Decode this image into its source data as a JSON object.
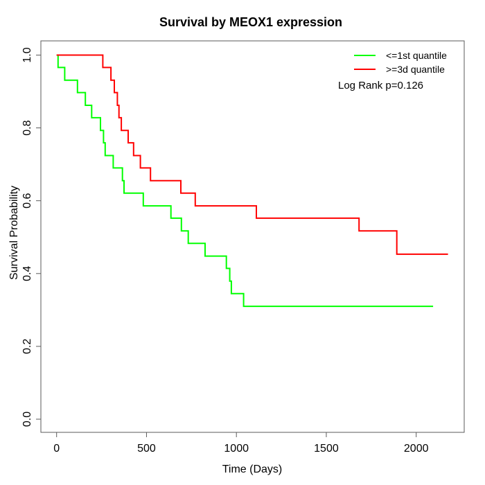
{
  "title": "Survival by MEOX1 expression",
  "axes": {
    "x_label": "Time (Days)",
    "y_label": "Survival Probability",
    "x_tick_labels": [
      "0",
      "500",
      "1000",
      "1500",
      "2000"
    ],
    "y_tick_labels": [
      "0.0",
      "0.2",
      "0.4",
      "0.6",
      "0.8",
      "1.0"
    ]
  },
  "legend": {
    "items": [
      {
        "label": "<=1st quantile",
        "color": "#00ff00"
      },
      {
        "label": ">=3d quantile",
        "color": "#ff0000"
      }
    ],
    "note": "Log Rank p=0.126"
  },
  "chart_data": {
    "type": "line",
    "subtype": "kaplan-meier-step",
    "title": "Survival by MEOX1 expression",
    "xlabel": "Time (Days)",
    "ylabel": "Survival Probability",
    "xlim": [
      0,
      2267
    ],
    "ylim": [
      0,
      1
    ],
    "x_ticks": [
      0,
      500,
      1000,
      1500,
      2000
    ],
    "y_ticks": [
      0.0,
      0.2,
      0.4,
      0.6,
      0.8,
      1.0
    ],
    "grid": false,
    "legend_position": "top-right",
    "annotation": "Log Rank p=0.126",
    "series": [
      {
        "name": "<=1st quantile",
        "color": "#00ff00",
        "end_day": 2094,
        "points": [
          [
            0,
            1.0
          ],
          [
            8,
            0.966
          ],
          [
            45,
            0.931
          ],
          [
            116,
            0.897
          ],
          [
            160,
            0.862
          ],
          [
            195,
            0.828
          ],
          [
            244,
            0.793
          ],
          [
            261,
            0.759
          ],
          [
            270,
            0.724
          ],
          [
            315,
            0.69
          ],
          [
            366,
            0.655
          ],
          [
            375,
            0.621
          ],
          [
            482,
            0.586
          ],
          [
            636,
            0.552
          ],
          [
            694,
            0.517
          ],
          [
            732,
            0.483
          ],
          [
            826,
            0.448
          ],
          [
            944,
            0.414
          ],
          [
            963,
            0.379
          ],
          [
            972,
            0.345
          ],
          [
            1040,
            0.31
          ]
        ]
      },
      {
        "name": ">=3d quantile",
        "color": "#ff0000",
        "end_day": 2177,
        "points": [
          [
            0,
            1.0
          ],
          [
            257,
            0.966
          ],
          [
            302,
            0.931
          ],
          [
            321,
            0.897
          ],
          [
            338,
            0.862
          ],
          [
            347,
            0.828
          ],
          [
            360,
            0.793
          ],
          [
            398,
            0.759
          ],
          [
            428,
            0.724
          ],
          [
            466,
            0.69
          ],
          [
            522,
            0.655
          ],
          [
            691,
            0.621
          ],
          [
            771,
            0.586
          ],
          [
            1111,
            0.552
          ],
          [
            1682,
            0.517
          ],
          [
            1892,
            0.453
          ]
        ]
      }
    ]
  }
}
